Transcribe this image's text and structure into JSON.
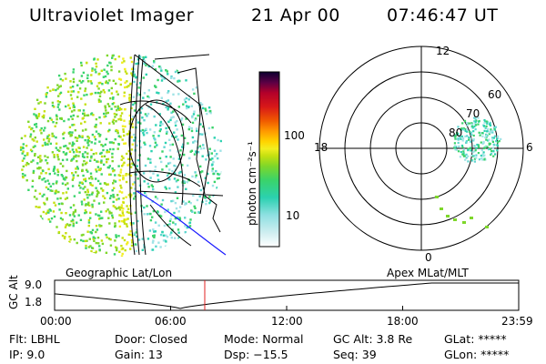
{
  "header": {
    "title": "Ultraviolet Imager",
    "date": "21 Apr 00",
    "time": "07:46:47 UT"
  },
  "colorbar": {
    "unit_label": "photon cm⁻²s⁻¹",
    "ticks": [
      "100",
      "10"
    ],
    "colors_bottom_to_top": [
      "#ffffff",
      "#cfeef0",
      "#9fe3e6",
      "#5fd6d0",
      "#2bd1b0",
      "#3ad36a",
      "#7ed72a",
      "#c5e010",
      "#f2ee20",
      "#ffd400",
      "#ff9a00",
      "#f05a00",
      "#d81818",
      "#b3002a",
      "#7a0036",
      "#3a0048",
      "#0c0030"
    ]
  },
  "polar_plot": {
    "mlt_labels": {
      "top": "12",
      "left": "18",
      "right": "6",
      "bottom": "0"
    },
    "lat_labels": [
      "80",
      "70",
      "60"
    ]
  },
  "timeline": {
    "left_label": "Geographic Lat/Lon",
    "right_label": "Apex MLat/MLT",
    "axis_title": "GC Alt",
    "y_ticks": [
      "9.0",
      "1.8"
    ],
    "x_ticks": [
      "00:00",
      "06:00",
      "12:00",
      "18:00",
      "23:59"
    ],
    "current_marker": "07:46",
    "marker_color": "#e02020"
  },
  "footer": {
    "row1": {
      "flt": "Flt: LBHL",
      "door": "Door: Closed",
      "mode": "Mode: Normal",
      "gcalt": "GC Alt: 3.8 Re",
      "glat": "GLat: *****"
    },
    "row2": {
      "ip": "IP:  9.0",
      "gain": "Gain: 13",
      "dsp": "Dsp:  −15.5",
      "seq": "Seq: 39",
      "glon": "GLon: *****"
    }
  }
}
